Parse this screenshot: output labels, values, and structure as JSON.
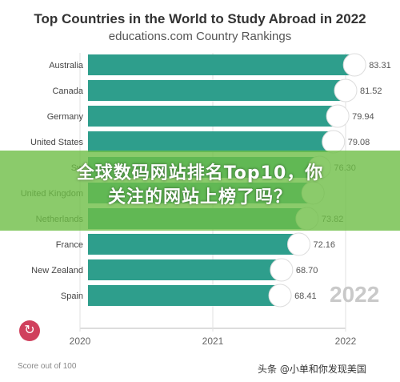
{
  "chart_data": {
    "type": "bar",
    "orientation": "horizontal",
    "title": "Top Countries in the World to Study Abroad in 2022",
    "subtitle": "educations.com Country Rankings",
    "categories": [
      "Australia",
      "Canada",
      "Germany",
      "United States",
      "Sweden",
      "United Kingdom",
      "Netherlands",
      "France",
      "New Zealand",
      "Spain"
    ],
    "values": [
      83.31,
      81.52,
      79.94,
      79.08,
      76.3,
      75.0,
      73.82,
      72.16,
      68.7,
      68.41
    ],
    "value_labels": [
      "83.31",
      "81.52",
      "79.94",
      "79.08",
      "76.30",
      "",
      "73.82",
      "72.16",
      "68.70",
      "68.41"
    ],
    "category_labels": [
      "Australia",
      "Canada",
      "Germany",
      "United States",
      "Sw",
      "United Kingdom",
      "Netherlands",
      "France",
      "New Zealand",
      "Spain"
    ],
    "x_ticks": [
      2020,
      2021,
      2022
    ],
    "year": "2022",
    "footnote": "Score out of 100",
    "bar_color": "#2e9e8c",
    "grid": true
  },
  "banner": {
    "line1": "全球数码网站排名Top10，你",
    "line2": "关注的网站上榜了吗？"
  },
  "replay_icon": "replay-icon",
  "watermark": "头条 @小单和你发现美国"
}
